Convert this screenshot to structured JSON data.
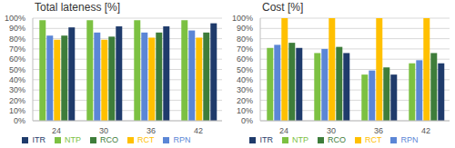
{
  "chart_data": [
    {
      "type": "bar",
      "title": "Total lateness [%]",
      "categories": [
        "24",
        "30",
        "36",
        "42"
      ],
      "series": [
        {
          "name": "NTP",
          "color": "#7cc142",
          "values": [
            98,
            98,
            98,
            98
          ]
        },
        {
          "name": "RPN",
          "color": "#5b86d6",
          "values": [
            83,
            86,
            86,
            88
          ]
        },
        {
          "name": "RCT",
          "color": "#ffc000",
          "values": [
            79,
            79,
            81,
            81
          ]
        },
        {
          "name": "RCO",
          "color": "#3e7d3a",
          "values": [
            83,
            82,
            86,
            86
          ]
        },
        {
          "name": "ITR",
          "color": "#1f3b6b",
          "values": [
            91,
            92,
            92,
            95
          ]
        }
      ],
      "ylim": [
        0,
        100
      ],
      "yticks": [
        {
          "value": 0,
          "label": "0%"
        },
        {
          "value": 10,
          "label": "10%"
        },
        {
          "value": 20,
          "label": "20%"
        },
        {
          "value": 30,
          "label": "30%"
        },
        {
          "value": 40,
          "label": "40%"
        },
        {
          "value": 50,
          "label": "50%"
        },
        {
          "value": 60,
          "label": "60%"
        },
        {
          "value": 70,
          "label": "70%"
        },
        {
          "value": 80,
          "label": "80%"
        },
        {
          "value": 90,
          "label": "90%"
        },
        {
          "value": 100,
          "label": "100%"
        }
      ],
      "grid": true,
      "legend": "bottom"
    },
    {
      "type": "bar",
      "title": "Cost [%]",
      "categories": [
        "24",
        "30",
        "36",
        "42"
      ],
      "series": [
        {
          "name": "NTP",
          "color": "#7cc142",
          "values": [
            71,
            66,
            45,
            56
          ]
        },
        {
          "name": "RPN",
          "color": "#5b86d6",
          "values": [
            74,
            70,
            49,
            59
          ]
        },
        {
          "name": "RCT",
          "color": "#ffc000",
          "values": [
            100,
            100,
            100,
            100
          ]
        },
        {
          "name": "RCO",
          "color": "#3e7d3a",
          "values": [
            76,
            72,
            52,
            66
          ]
        },
        {
          "name": "ITR",
          "color": "#1f3b6b",
          "values": [
            71,
            66,
            45,
            56
          ]
        }
      ],
      "ylim": [
        0,
        100
      ],
      "yticks": [
        {
          "value": 0,
          "label": "0%"
        },
        {
          "value": 10,
          "label": "10%"
        },
        {
          "value": 20,
          "label": "20%"
        },
        {
          "value": 30,
          "label": "30%"
        },
        {
          "value": 40,
          "label": "40%"
        },
        {
          "value": 50,
          "label": "50%"
        },
        {
          "value": 60,
          "label": "60%"
        },
        {
          "value": 70,
          "label": "70%"
        },
        {
          "value": 80,
          "label": "80%"
        },
        {
          "value": 90,
          "label": "90%"
        },
        {
          "value": 100,
          "label": "100%"
        }
      ],
      "grid": true,
      "legend": "bottom"
    }
  ]
}
